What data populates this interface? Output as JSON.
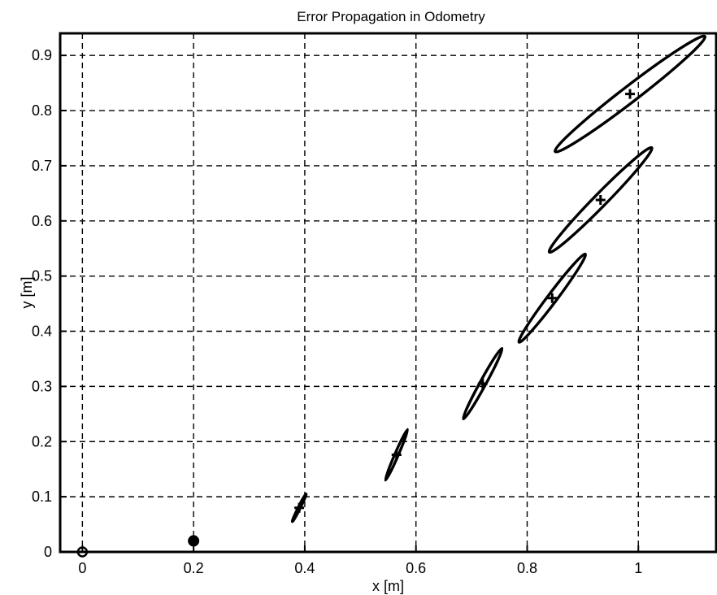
{
  "chart_data": {
    "type": "scatter",
    "title": "Error Propagation in Odometry",
    "xlabel": "x [m]",
    "ylabel": "y [m]",
    "xlim": [
      -0.04,
      1.14
    ],
    "ylim": [
      0,
      0.94
    ],
    "xticks": [
      0,
      0.2,
      0.4,
      0.6,
      0.8,
      1
    ],
    "xtick_labels": [
      "0",
      "0.2",
      "0.4",
      "0.6",
      "0.8",
      "1"
    ],
    "yticks": [
      0,
      0.1,
      0.2,
      0.3,
      0.4,
      0.5,
      0.6,
      0.7,
      0.8,
      0.9
    ],
    "ytick_labels": [
      "0",
      "0.1",
      "0.2",
      "0.3",
      "0.4",
      "0.5",
      "0.6",
      "0.7",
      "0.8",
      "0.9"
    ],
    "grid": true,
    "start_point": {
      "x": 0,
      "y": 0,
      "marker": "open-circle"
    },
    "first_point": {
      "x": 0.2,
      "y": 0.02,
      "marker": "filled-circle"
    },
    "estimated_poses": {
      "marker": "plus",
      "points": [
        {
          "x": 0.39,
          "y": 0.08
        },
        {
          "x": 0.565,
          "y": 0.176
        },
        {
          "x": 0.72,
          "y": 0.305
        },
        {
          "x": 0.845,
          "y": 0.46
        },
        {
          "x": 0.932,
          "y": 0.638
        },
        {
          "x": 0.985,
          "y": 0.83
        }
      ]
    },
    "uncertainty_ellipses": [
      {
        "center_x": 0.39,
        "center_y": 0.08,
        "x_extent": [
          0.375,
          0.4
        ],
        "y_extent": [
          0.055,
          0.105
        ]
      },
      {
        "center_x": 0.565,
        "center_y": 0.176,
        "x_extent": [
          0.545,
          0.585
        ],
        "y_extent": [
          0.13,
          0.222
        ]
      },
      {
        "center_x": 0.72,
        "center_y": 0.305,
        "x_extent": [
          0.685,
          0.755
        ],
        "y_extent": [
          0.24,
          0.368
        ]
      },
      {
        "center_x": 0.845,
        "center_y": 0.46,
        "x_extent": [
          0.785,
          0.905
        ],
        "y_extent": [
          0.38,
          0.54
        ]
      },
      {
        "center_x": 0.932,
        "center_y": 0.638,
        "x_extent": [
          0.84,
          1.025
        ],
        "y_extent": [
          0.54,
          0.73
        ]
      },
      {
        "center_x": 0.985,
        "center_y": 0.83,
        "x_extent": [
          0.84,
          1.11
        ],
        "y_extent": [
          0.73,
          0.94
        ]
      }
    ],
    "colors": {
      "line": "#000000",
      "background": "#ffffff"
    }
  }
}
